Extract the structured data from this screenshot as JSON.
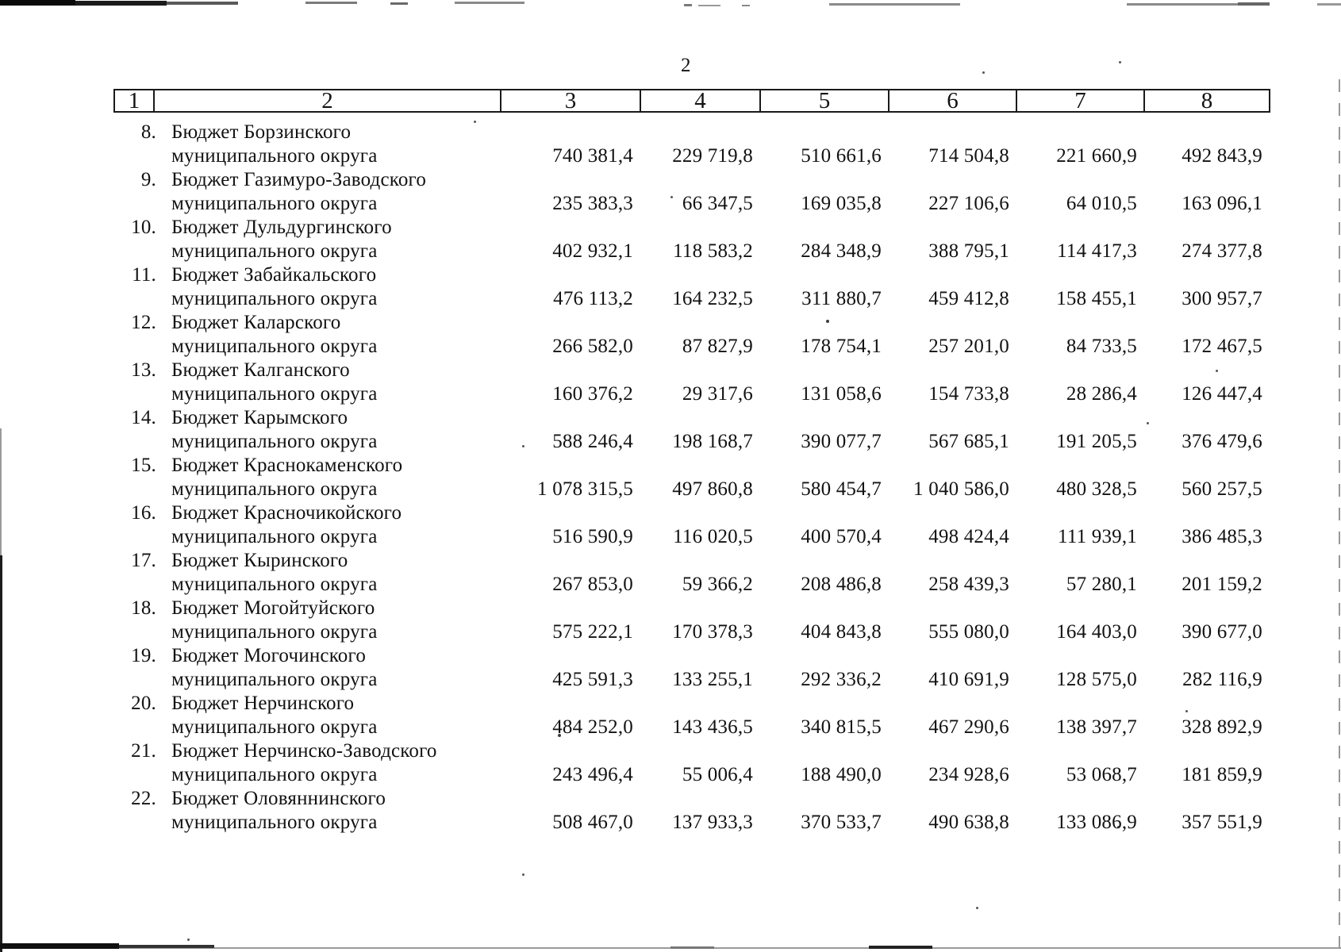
{
  "page": {
    "number": "2"
  },
  "table": {
    "header_columns": [
      "1",
      "2",
      "3",
      "4",
      "5",
      "6",
      "7",
      "8"
    ],
    "rows": [
      {
        "num": "8.",
        "name_line1": "Бюджет Борзинского",
        "name_line2": "муниципального округа",
        "values": [
          "740 381,4",
          "229 719,8",
          "510 661,6",
          "714 504,8",
          "221 660,9",
          "492 843,9"
        ]
      },
      {
        "num": "9.",
        "name_line1": "Бюджет Газимуро-Заводского",
        "name_line2": "муниципального округа",
        "values": [
          "235 383,3",
          "66 347,5",
          "169 035,8",
          "227 106,6",
          "64 010,5",
          "163 096,1"
        ]
      },
      {
        "num": "10.",
        "name_line1": "Бюджет Дульдургинского",
        "name_line2": "муниципального округа",
        "values": [
          "402 932,1",
          "118 583,2",
          "284 348,9",
          "388 795,1",
          "114 417,3",
          "274 377,8"
        ]
      },
      {
        "num": "11.",
        "name_line1": "Бюджет Забайкальского",
        "name_line2": "муниципального округа",
        "values": [
          "476 113,2",
          "164 232,5",
          "311 880,7",
          "459 412,8",
          "158 455,1",
          "300 957,7"
        ]
      },
      {
        "num": "12.",
        "name_line1": "Бюджет Каларского",
        "name_line2": "муниципального округа",
        "values": [
          "266 582,0",
          "87 827,9",
          "178 754,1",
          "257 201,0",
          "84 733,5",
          "172 467,5"
        ]
      },
      {
        "num": "13.",
        "name_line1": "Бюджет Калганского",
        "name_line2": "муниципального округа",
        "values": [
          "160 376,2",
          "29 317,6",
          "131 058,6",
          "154 733,8",
          "28 286,4",
          "126 447,4"
        ]
      },
      {
        "num": "14.",
        "name_line1": "Бюджет Карымского",
        "name_line2": "муниципального округа",
        "values": [
          "588 246,4",
          "198 168,7",
          "390 077,7",
          "567 685,1",
          "191 205,5",
          "376 479,6"
        ]
      },
      {
        "num": "15.",
        "name_line1": "Бюджет Краснокаменского",
        "name_line2": "муниципального округа",
        "values": [
          "1 078 315,5",
          "497 860,8",
          "580 454,7",
          "1 040 586,0",
          "480 328,5",
          "560 257,5"
        ]
      },
      {
        "num": "16.",
        "name_line1": "Бюджет Красночикойского",
        "name_line2": "муниципального округа",
        "values": [
          "516 590,9",
          "116 020,5",
          "400 570,4",
          "498 424,4",
          "111 939,1",
          "386 485,3"
        ]
      },
      {
        "num": "17.",
        "name_line1": "Бюджет Кыринского",
        "name_line2": "муниципального округа",
        "values": [
          "267 853,0",
          "59 366,2",
          "208 486,8",
          "258 439,3",
          "57 280,1",
          "201 159,2"
        ]
      },
      {
        "num": "18.",
        "name_line1": "Бюджет Могойтуйского",
        "name_line2": "муниципального округа",
        "values": [
          "575 222,1",
          "170 378,3",
          "404 843,8",
          "555 080,0",
          "164 403,0",
          "390 677,0"
        ]
      },
      {
        "num": "19.",
        "name_line1": "Бюджет Могочинского",
        "name_line2": "муниципального округа",
        "values": [
          "425 591,3",
          "133 255,1",
          "292 336,2",
          "410 691,9",
          "128 575,0",
          "282 116,9"
        ]
      },
      {
        "num": "20.",
        "name_line1": "Бюджет Нерчинского",
        "name_line2": "муниципального округа",
        "values": [
          "484 252,0",
          "143 436,5",
          "340 815,5",
          "467 290,6",
          "138 397,7",
          "328 892,9"
        ]
      },
      {
        "num": "21.",
        "name_line1": "Бюджет Нерчинско-Заводского",
        "name_line2": "муниципального округа",
        "values": [
          "243 496,4",
          "55 006,4",
          "188 490,0",
          "234 928,6",
          "53 068,7",
          "181 859,9"
        ]
      },
      {
        "num": "22.",
        "name_line1": "Бюджет Оловяннинского",
        "name_line2": "муниципального округа",
        "values": [
          "508 467,0",
          "137 933,3",
          "370 533,7",
          "490 638,8",
          "133 086,9",
          "357 551,9"
        ]
      }
    ]
  }
}
